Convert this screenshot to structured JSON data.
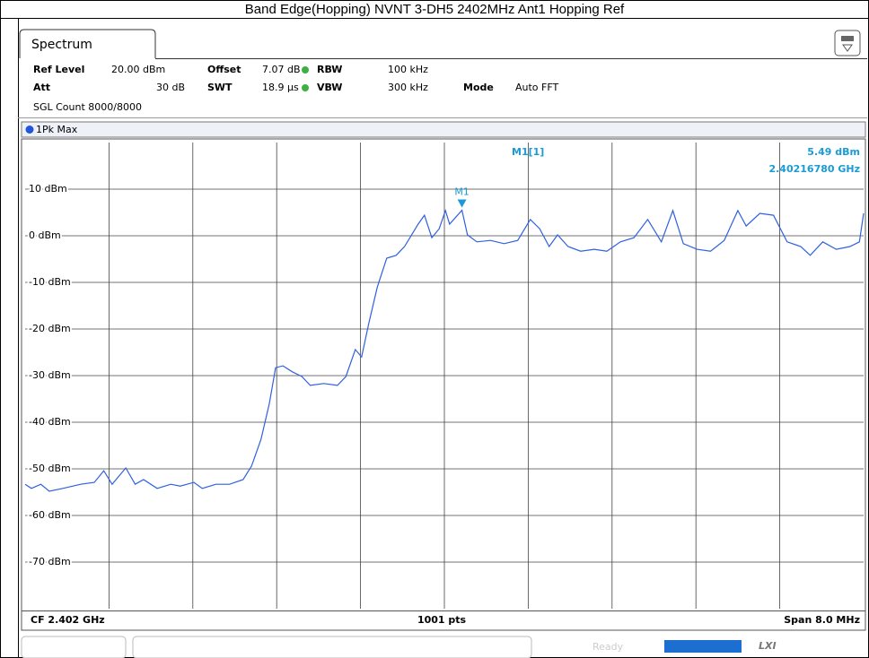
{
  "title": "Band Edge(Hopping) NVNT 3-DH5 2402MHz Ant1 Hopping Ref",
  "tab": "Spectrum",
  "settings": [
    {
      "label": "Ref Level",
      "value": "20.00 dBm"
    },
    {
      "label": "Offset",
      "value": "7.07 dB"
    },
    {
      "label": "RBW",
      "value": "100 kHz"
    },
    {
      "label": "Att",
      "value": "30 dB"
    },
    {
      "label": "SWT",
      "value": "18.9 µs"
    },
    {
      "label": "VBW",
      "value": "300 kHz"
    },
    {
      "label": "Mode",
      "value": "Auto FFT"
    }
  ],
  "count": "SGL Count 8000/8000",
  "trace_label": "1Pk Max",
  "footer": {
    "center_freq": "CF 2.402 GHz",
    "points": "1001 pts",
    "span": "Span 8.0 MHz"
  },
  "status": {
    "ready": "Ready",
    "lxi": "LXI"
  },
  "chart_data": {
    "type": "line",
    "xlim": [
      2.398,
      2.406
    ],
    "ylim": [
      -80,
      20
    ],
    "yticks": [
      {
        "value": 10,
        "label": "10 dBm"
      },
      {
        "value": 0,
        "label": "0 dBm"
      },
      {
        "value": -10,
        "label": "-10 dBm"
      },
      {
        "value": -20,
        "label": "-20 dBm"
      },
      {
        "value": -30,
        "label": "-30 dBm"
      },
      {
        "value": -40,
        "label": "-40 dBm"
      },
      {
        "value": -50,
        "label": "-50 dBm"
      },
      {
        "value": -60,
        "label": "-60 dBm"
      },
      {
        "value": -70,
        "label": "-70 dBm"
      }
    ],
    "grid": true,
    "series": [
      {
        "name": "1Pk Max",
        "color": "#3060e0",
        "x": [
          2.398,
          2.39806,
          2.39815,
          2.39823,
          2.39836,
          2.39853,
          2.39866,
          2.39875,
          2.39883,
          2.39896,
          2.39905,
          2.39913,
          2.39926,
          2.39939,
          2.39948,
          2.39961,
          2.39969,
          2.39982,
          2.39995,
          2.40008,
          2.40016,
          2.40025,
          2.40033,
          2.40039,
          2.40046,
          2.40055,
          2.40064,
          2.40072,
          2.40085,
          2.40098,
          2.40106,
          2.40115,
          2.40121,
          2.40128,
          2.40136,
          2.40145,
          2.40154,
          2.40162,
          2.40175,
          2.40181,
          2.40188,
          2.40195,
          2.40201,
          2.40205,
          2.4021678,
          2.40222,
          2.40231,
          2.40244,
          2.40257,
          2.4027,
          2.40282,
          2.40291,
          2.403,
          2.40308,
          2.40318,
          2.4033,
          2.40343,
          2.40355,
          2.40368,
          2.40381,
          2.40394,
          2.40407,
          2.40418,
          2.40428,
          2.40441,
          2.40454,
          2.40467,
          2.4048,
          2.40488,
          2.40501,
          2.40514,
          2.40527,
          2.4054,
          2.40549,
          2.40561,
          2.40574,
          2.40587,
          2.40596,
          2.406
        ],
        "values": [
          -53.3,
          -54.2,
          -53.3,
          -54.8,
          -54.2,
          -53.3,
          -52.9,
          -50.4,
          -53.3,
          -49.8,
          -53.3,
          -52.3,
          -54.2,
          -53.3,
          -53.7,
          -52.9,
          -54.2,
          -53.3,
          -53.3,
          -52.3,
          -49.4,
          -43.7,
          -36.0,
          -28.3,
          -27.9,
          -29.2,
          -30.2,
          -32.1,
          -31.7,
          -32.1,
          -30.2,
          -24.4,
          -26.0,
          -18.7,
          -11.0,
          -4.8,
          -4.2,
          -2.3,
          2.5,
          4.4,
          -0.4,
          1.5,
          5.4,
          2.5,
          5.49,
          0.2,
          -1.3,
          -1.0,
          -1.7,
          -1.0,
          3.5,
          1.5,
          -2.3,
          0.2,
          -2.3,
          -3.3,
          -2.9,
          -3.3,
          -1.3,
          -0.4,
          3.5,
          -1.3,
          5.4,
          -1.7,
          -2.9,
          -3.3,
          -1.0,
          5.4,
          2.1,
          4.8,
          4.4,
          -1.3,
          -2.3,
          -4.2,
          -1.3,
          -2.9,
          -2.3,
          -1.3,
          4.8
        ]
      }
    ],
    "marker": {
      "name": "M1",
      "readout": "M1[1]",
      "x": 2.4021678,
      "value": 5.49,
      "value_label": "5.49 dBm",
      "x_label": "2.40216780 GHz",
      "color": "#1a9ad6"
    }
  }
}
